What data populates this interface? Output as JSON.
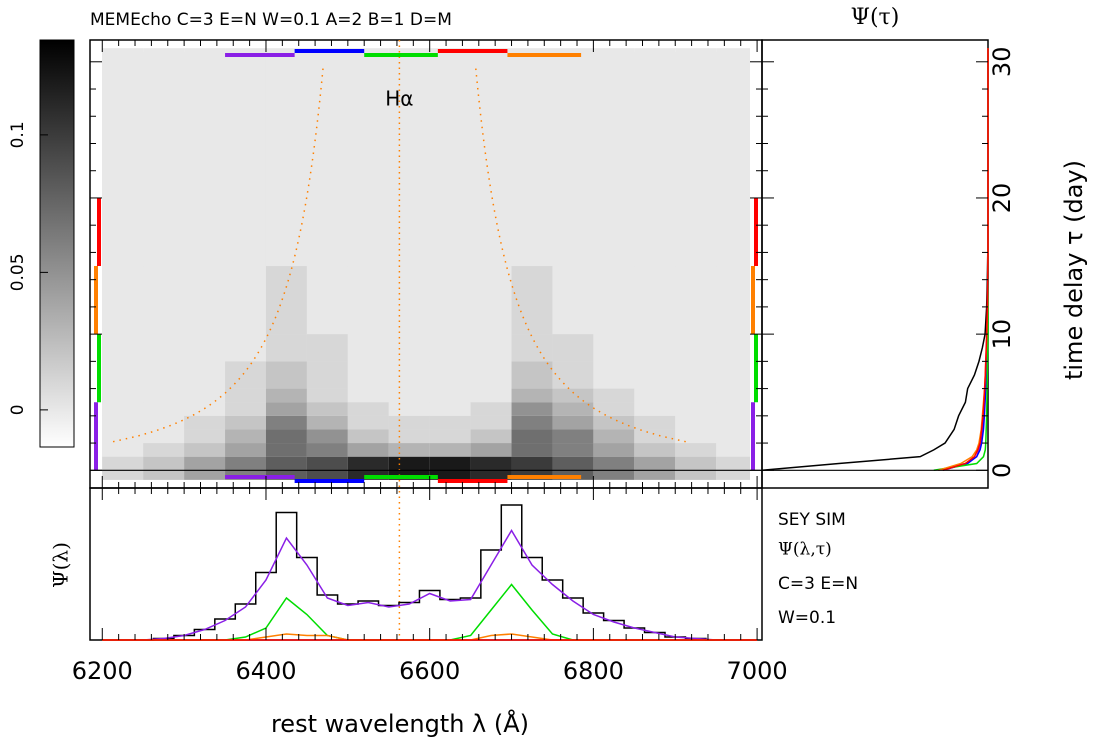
{
  "chart_data": [
    {
      "type": "heatmap",
      "title": "MEMEcho C=3 E=N W=0.1 A=2 B=1 D=M",
      "annotation": {
        "text": "Hα",
        "x": 6563
      },
      "xlim": [
        6185,
        7006
      ],
      "ylim": [
        -1.3,
        31.6
      ],
      "x_edges": [
        6200,
        6250,
        6300,
        6350,
        6400,
        6450,
        6500,
        6550,
        6600,
        6650,
        6700,
        6750,
        6800,
        6850,
        6900,
        6950,
        7000
      ],
      "y_edges": [
        -0.7,
        1,
        2,
        3,
        4,
        5,
        6,
        8,
        10,
        15,
        31
      ],
      "values": [
        [
          0.01,
          0.02,
          0.04,
          0.06,
          0.08,
          0.09,
          0.11,
          0.12,
          0.12,
          0.11,
          0.1,
          0.08,
          0.06,
          0.04,
          0.02,
          0.01
        ],
        [
          0,
          0.01,
          0.02,
          0.04,
          0.07,
          0.06,
          0.04,
          0.03,
          0.03,
          0.04,
          0.07,
          0.06,
          0.04,
          0.02,
          0.01,
          0
        ],
        [
          0,
          0,
          0.01,
          0.03,
          0.07,
          0.05,
          0.02,
          0.01,
          0.01,
          0.02,
          0.07,
          0.06,
          0.03,
          0.01,
          0,
          0
        ],
        [
          0,
          0,
          0.01,
          0.02,
          0.06,
          0.03,
          0.01,
          0.01,
          0.01,
          0.01,
          0.06,
          0.04,
          0.02,
          0.01,
          0,
          0
        ],
        [
          0,
          0,
          0,
          0.01,
          0.04,
          0.02,
          0.01,
          0,
          0,
          0.01,
          0.05,
          0.03,
          0.01,
          0,
          0,
          0
        ],
        [
          0,
          0,
          0,
          0.01,
          0.03,
          0.01,
          0,
          0,
          0,
          0,
          0.03,
          0.02,
          0.01,
          0,
          0,
          0
        ],
        [
          0,
          0,
          0,
          0.01,
          0.02,
          0.01,
          0,
          0,
          0,
          0,
          0.02,
          0.01,
          0,
          0,
          0,
          0
        ],
        [
          0,
          0,
          0,
          0,
          0.01,
          0.01,
          0,
          0,
          0,
          0,
          0.01,
          0.01,
          0,
          0,
          0,
          0
        ],
        [
          0,
          0,
          0,
          0,
          0.01,
          0,
          0,
          0,
          0,
          0,
          0.01,
          0,
          0,
          0,
          0,
          0
        ],
        [
          0,
          0,
          0,
          0,
          0,
          0,
          0,
          0,
          0,
          0,
          0,
          0,
          0,
          0,
          0,
          0
        ]
      ],
      "colorbar": {
        "lim": [
          -0.0135,
          0.1345
        ],
        "ticks": [
          0,
          0.05,
          0.1
        ]
      },
      "wavelength_bins": {
        "edges": [
          6350,
          6435,
          6520,
          6610,
          6695,
          6785
        ],
        "colors": [
          "#8a1fe6",
          "#0000ff",
          "#00dd00",
          "#ff0000",
          "#ff8000"
        ]
      },
      "delay_bins": {
        "edges": [
          0,
          5,
          10,
          15,
          20
        ],
        "colors": [
          "#8a1fe6",
          "#00dd00",
          "#ff8000",
          "#ff0000"
        ]
      }
    },
    {
      "type": "line",
      "title": "Ψ(τ)",
      "ylabel": "time delay τ (day)",
      "xlim": [
        1,
        0
      ],
      "ylim": [
        -1.3,
        31.6
      ],
      "yticks": [
        0,
        10,
        20,
        30
      ],
      "y": [
        0,
        0.5,
        1,
        1.5,
        2,
        3,
        4,
        5,
        6,
        7,
        8,
        9,
        10,
        12,
        14,
        16,
        31
      ],
      "series": [
        {
          "color": "#000000",
          "values": [
            1.0,
            0.66,
            0.3,
            0.24,
            0.19,
            0.15,
            0.13,
            0.1,
            0.09,
            0.06,
            0.04,
            0.025,
            0.013,
            0.006,
            0.003,
            0.001,
            0
          ]
        },
        {
          "color": "#8a1fe6",
          "values": [
            0.22,
            0.1,
            0.05,
            0.04,
            0.03,
            0.025,
            0.02,
            0.015,
            0.012,
            0.01,
            0.008,
            0.006,
            0.004,
            0.002,
            0.001,
            0,
            0
          ]
        },
        {
          "color": "#0000ff",
          "values": [
            0.2,
            0.09,
            0.05,
            0.035,
            0.028,
            0.02,
            0.016,
            0.013,
            0.01,
            0.008,
            0.006,
            0.004,
            0.003,
            0.001,
            0,
            0,
            0
          ]
        },
        {
          "color": "#00dd00",
          "values": [
            0.24,
            0.05,
            0.02,
            0.012,
            0.01,
            0.008,
            0.006,
            0.005,
            0.004,
            0.003,
            0.002,
            0.001,
            0,
            0,
            0,
            0,
            0
          ]
        },
        {
          "color": "#ff8000",
          "values": [
            0.22,
            0.12,
            0.07,
            0.05,
            0.04,
            0.03,
            0.025,
            0.02,
            0.015,
            0.012,
            0.01,
            0.007,
            0.005,
            0.002,
            0.001,
            0,
            0
          ]
        },
        {
          "color": "#ff0000",
          "values": [
            0.2,
            0.1,
            0.06,
            0.045,
            0.035,
            0.028,
            0.022,
            0.018,
            0.015,
            0.012,
            0.01,
            0.008,
            0.006,
            0.003,
            0.001,
            0,
            0
          ]
        }
      ]
    },
    {
      "type": "line",
      "xlabel": "rest wavelength λ (Å)",
      "ylabel": "Ψ(λ)",
      "notes": [
        "SEY SIM",
        "Ψ(λ,τ)",
        "C=3 E=N",
        "W=0.1"
      ],
      "xlim": [
        6185,
        7006
      ],
      "xticks": [
        6200,
        6400,
        6600,
        6800,
        7000
      ],
      "ylim": [
        0,
        1
      ],
      "x": [
        6200,
        6225,
        6250,
        6275,
        6300,
        6325,
        6350,
        6375,
        6400,
        6425,
        6450,
        6475,
        6500,
        6525,
        6550,
        6575,
        6600,
        6625,
        6650,
        6675,
        6700,
        6725,
        6750,
        6775,
        6800,
        6825,
        6850,
        6875,
        6900,
        6925,
        6950,
        6975,
        7000
      ],
      "series": [
        {
          "color": "#000000",
          "values": [
            0,
            0,
            0,
            0.01,
            0.03,
            0.07,
            0.14,
            0.24,
            0.45,
            0.85,
            0.55,
            0.3,
            0.24,
            0.26,
            0.23,
            0.25,
            0.33,
            0.27,
            0.28,
            0.6,
            0.9,
            0.55,
            0.4,
            0.28,
            0.18,
            0.13,
            0.08,
            0.05,
            0.02,
            0.01,
            0,
            0,
            0
          ]
        },
        {
          "color": "#8a1fe6",
          "values": [
            0,
            0,
            0,
            0.01,
            0.03,
            0.07,
            0.13,
            0.22,
            0.4,
            0.68,
            0.5,
            0.28,
            0.23,
            0.25,
            0.22,
            0.24,
            0.31,
            0.26,
            0.27,
            0.5,
            0.73,
            0.5,
            0.37,
            0.26,
            0.17,
            0.12,
            0.08,
            0.05,
            0.02,
            0.01,
            0,
            0,
            0
          ]
        },
        {
          "color": "#00dd00",
          "values": [
            0,
            0,
            0,
            0,
            0,
            0,
            0,
            0.02,
            0.08,
            0.28,
            0.17,
            0.03,
            0,
            0,
            0,
            0,
            0,
            0,
            0.03,
            0.2,
            0.37,
            0.2,
            0.04,
            0,
            0,
            0,
            0,
            0,
            0,
            0,
            0,
            0,
            0
          ]
        },
        {
          "color": "#ff8000",
          "values": [
            0,
            0,
            0,
            0,
            0,
            0,
            0,
            0,
            0.02,
            0.04,
            0.03,
            0.03,
            0,
            0,
            0,
            0,
            0,
            0,
            0,
            0.03,
            0.04,
            0.02,
            0,
            0,
            0,
            0,
            0,
            0,
            0,
            0,
            0,
            0,
            0
          ]
        },
        {
          "color": "#ff0000",
          "values": [
            0,
            0,
            0,
            0,
            0,
            0,
            0,
            0,
            0,
            0,
            0,
            0,
            0,
            0,
            0,
            0,
            0,
            0,
            0,
            0,
            0,
            0,
            0,
            0,
            0,
            0,
            0,
            0,
            0,
            0,
            0,
            0,
            0
          ]
        }
      ]
    }
  ]
}
